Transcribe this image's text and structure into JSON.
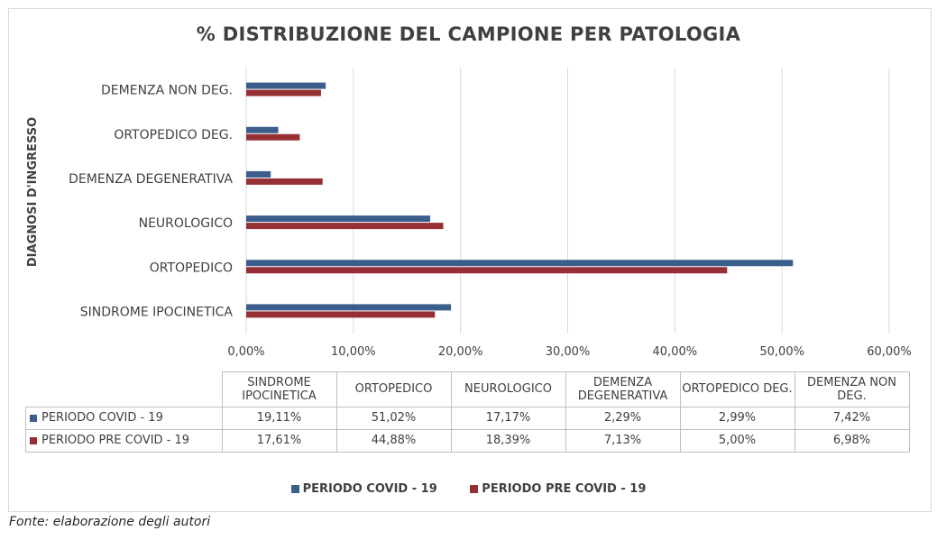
{
  "colors": {
    "covid": "#3c5e8c",
    "precovid": "#963034",
    "grid": "#d9d9d9"
  },
  "chart_data": {
    "type": "bar",
    "orientation": "horizontal",
    "title": "% DISTRIBUZIONE DEL CAMPIONE PER PATOLOGIA",
    "ylabel": "DIAGNOSI D'INGRESSO",
    "categories": [
      "SINDROME IPOCINETICA",
      "ORTOPEDICO",
      "NEUROLOGICO",
      "DEMENZA DEGENERATIVA",
      "ORTOPEDICO DEG.",
      "DEMENZA NON DEG."
    ],
    "series": [
      {
        "name": "PERIODO COVID - 19",
        "values": [
          19.11,
          51.02,
          17.17,
          2.29,
          2.99,
          7.42
        ]
      },
      {
        "name": "PERIODO PRE COVID - 19",
        "values": [
          17.61,
          44.88,
          18.39,
          7.13,
          5.0,
          6.98
        ]
      }
    ],
    "xlim": [
      0,
      60
    ],
    "xticks": [
      "0,00%",
      "10,00%",
      "20,00%",
      "30,00%",
      "40,00%",
      "50,00%",
      "60,00%"
    ],
    "grid": true,
    "legend": "bottom"
  },
  "table": {
    "headers": [
      "SINDROME IPOCINETICA",
      "ORTOPEDICO",
      "NEUROLOGICO",
      "DEMENZA DEGENERATIVA",
      "ORTOPEDICO DEG.",
      "DEMENZA NON DEG."
    ],
    "rows": [
      {
        "label": "PERIODO COVID - 19",
        "cells": [
          "19,11%",
          "51,02%",
          "17,17%",
          "2,29%",
          "2,99%",
          "7,42%"
        ]
      },
      {
        "label": "PERIODO PRE COVID - 19",
        "cells": [
          "17,61%",
          "44,88%",
          "18,39%",
          "7,13%",
          "5,00%",
          "6,98%"
        ]
      }
    ]
  },
  "source": "Fonte: elaborazione degli autori"
}
